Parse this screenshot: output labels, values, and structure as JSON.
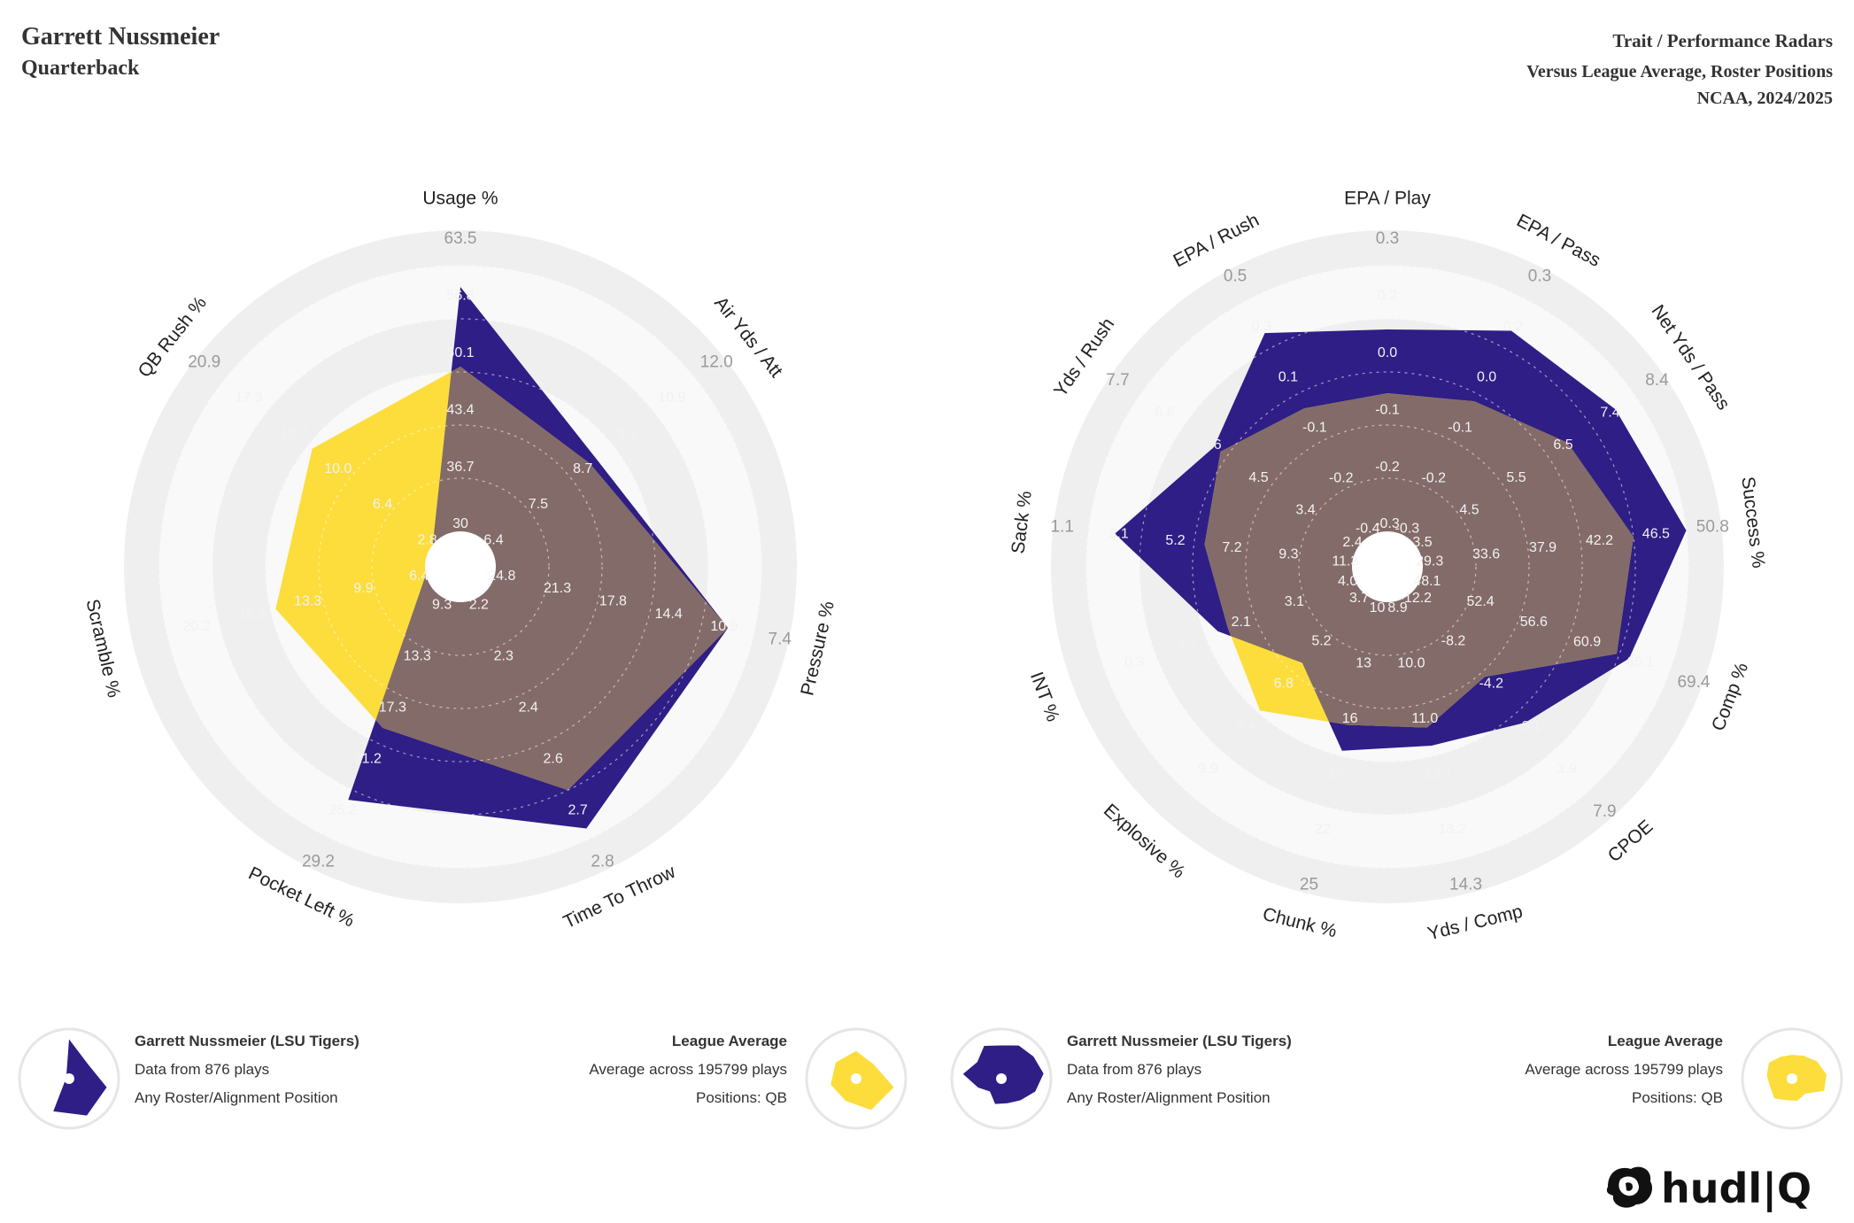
{
  "header": {
    "player_name": "Garrett Nussmeier",
    "position": "Quarterback",
    "title": "Trait / Performance Radars",
    "subtitle": "Versus League Average, Roster Positions",
    "season": "NCAA, 2024/2025"
  },
  "colors": {
    "player": "#2e1e86",
    "league": "#fcdd3c",
    "overlap": "#836b69",
    "ring_dark": "#efefef",
    "ring_light": "#f9f9f9"
  },
  "legend_left": {
    "player_title": "Garrett Nussmeier (LSU Tigers)",
    "player_line1": "Data from 876 plays",
    "player_line2": "Any Roster/Alignment Position",
    "league_title": "League Average",
    "league_line1": "Average across 195799 plays",
    "league_line2": "Positions: QB"
  },
  "legend_right": {
    "player_title": "Garrett Nussmeier (LSU Tigers)",
    "player_line1": "Data from 876 plays",
    "player_line2": "Any Roster/Alignment Position",
    "league_title": "League Average",
    "league_line1": "Average across 195799 plays",
    "league_line2": "Positions: QB"
  },
  "logo_text": "hudl|Q",
  "chart_data": [
    {
      "type": "radar",
      "title": "Trait Radar",
      "axes": [
        {
          "label": "Usage %",
          "ticks": [
            "30",
            "36.7",
            "43.4",
            "50.1",
            "56.8",
            "63.5"
          ]
        },
        {
          "label": "Air Yds / Att",
          "ticks": [
            "6.4",
            "7.5",
            "8.7",
            "9.8",
            "10.9",
            "12.0"
          ]
        },
        {
          "label": "Pressure %",
          "ticks": [
            "24.8",
            "21.3",
            "17.8",
            "14.4",
            "10.9",
            "7.4"
          ]
        },
        {
          "label": "Time To Throw",
          "ticks": [
            "2.2",
            "2.3",
            "2.4",
            "2.6",
            "2.7",
            "2.8"
          ]
        },
        {
          "label": "Pocket Left %",
          "ticks": [
            "9.3",
            "13.3",
            "17.3",
            "21.2",
            "25.2",
            "29.2"
          ]
        },
        {
          "label": "Scramble %",
          "ticks": [
            "6.4",
            "9.9",
            "13.3",
            "16.8",
            "20.2"
          ]
        },
        {
          "label": "QB Rush %",
          "ticks": [
            "2.8",
            "6.4",
            "10.0",
            "13.7",
            "17.3",
            "20.9"
          ]
        }
      ],
      "series": [
        {
          "name": "Garrett Nussmeier (LSU Tigers)",
          "values": [
            0.92,
            0.52,
            0.9,
            0.96,
            0.84,
            0.0,
            0.0
          ]
        },
        {
          "name": "League Average",
          "values": [
            0.62,
            0.49,
            0.9,
            0.8,
            0.54,
            0.58,
            0.58
          ]
        }
      ]
    },
    {
      "type": "radar",
      "title": "Performance Radar",
      "axes": [
        {
          "label": "EPA / Play",
          "ticks": [
            "-0.3",
            "-0.2",
            "-0.1",
            "0.0",
            "0.2",
            "0.3"
          ]
        },
        {
          "label": "EPA / Pass",
          "ticks": [
            "-0.3",
            "-0.2",
            "-0.1",
            "0.0",
            "0.2",
            "0.3"
          ]
        },
        {
          "label": "Net Yds / Pass",
          "ticks": [
            "3.5",
            "4.5",
            "5.5",
            "6.5",
            "7.4",
            "8.4"
          ]
        },
        {
          "label": "Success %",
          "ticks": [
            "29.3",
            "33.6",
            "37.9",
            "42.2",
            "46.5",
            "50.8"
          ]
        },
        {
          "label": "Comp %",
          "ticks": [
            "48.1",
            "52.4",
            "56.6",
            "60.9",
            "65.1",
            "69.4"
          ]
        },
        {
          "label": "CPOE",
          "ticks": [
            "-12.2",
            "-8.2",
            "-4.2",
            "-0.1",
            "3.9",
            "7.9"
          ]
        },
        {
          "label": "Yds / Comp",
          "ticks": [
            "8.9",
            "10.0",
            "11.0",
            "12.1",
            "13.2",
            "14.3"
          ]
        },
        {
          "label": "Chunk %",
          "ticks": [
            "10",
            "13",
            "16",
            "19",
            "22",
            "25"
          ]
        },
        {
          "label": "Explosive %",
          "ticks": [
            "3.7",
            "5.2",
            "6.8",
            "8.4",
            "9.9"
          ]
        },
        {
          "label": "INT %",
          "ticks": [
            "4.0",
            "3.1",
            "2.1",
            "1.2",
            "0.3"
          ]
        },
        {
          "label": "Sack %",
          "ticks": [
            "11.3",
            "9.3",
            "7.2",
            "5.2",
            "3.1",
            "1.1"
          ]
        },
        {
          "label": "Yds / Rush",
          "ticks": [
            "2.4",
            "3.4",
            "4.5",
            "5.6",
            "6.6",
            "7.7"
          ]
        },
        {
          "label": "EPA / Rush",
          "ticks": [
            "-0.4",
            "-0.2",
            "-0.1",
            "0.1",
            "0.3",
            "0.5"
          ]
        }
      ],
      "series": [
        {
          "name": "Garrett Nussmeier (LSU Tigers)",
          "values": [
            0.76,
            0.87,
            0.91,
            1.0,
            0.84,
            0.65,
            0.56,
            0.58,
            0.35,
            0.55,
            0.9,
            0.66,
            0.86
          ]
        },
        {
          "name": "League Average",
          "values": [
            0.52,
            0.57,
            0.69,
            0.8,
            0.79,
            0.42,
            0.49,
            0.48,
            0.59,
            0.51,
            0.56,
            0.63,
            0.54
          ]
        }
      ]
    }
  ]
}
